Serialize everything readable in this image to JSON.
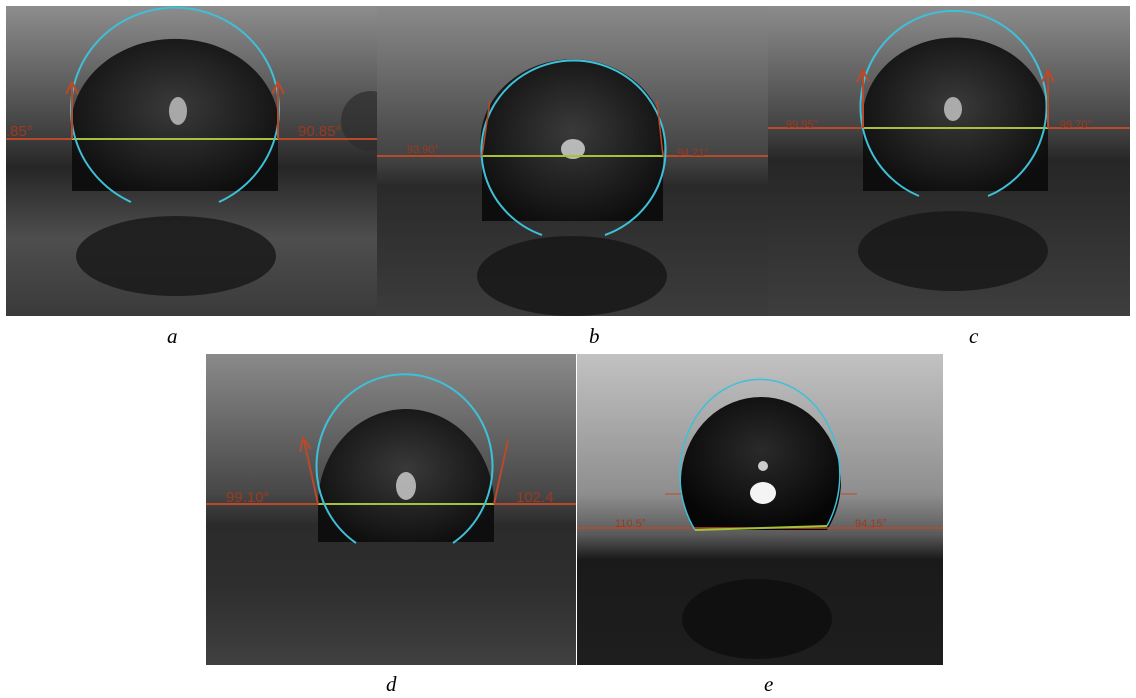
{
  "panels": [
    {
      "label": "a",
      "left_angle": ".85°",
      "right_angle": "90.85°"
    },
    {
      "label": "b",
      "left_angle": "93.90°",
      "right_angle": "94.21°"
    },
    {
      "label": "c",
      "left_angle": "99.95°",
      "right_angle": "99.70°"
    },
    {
      "label": "d",
      "left_angle": "99.10°",
      "right_angle": "102.4"
    },
    {
      "label": "e",
      "left_angle": "110.5°",
      "right_angle": "94.15°"
    }
  ],
  "colors": {
    "baseline": "#b84a2a",
    "fit_circle": "#3ec0d8",
    "contact_line": "#a4c23a",
    "angle_text": "#9b3a22"
  }
}
